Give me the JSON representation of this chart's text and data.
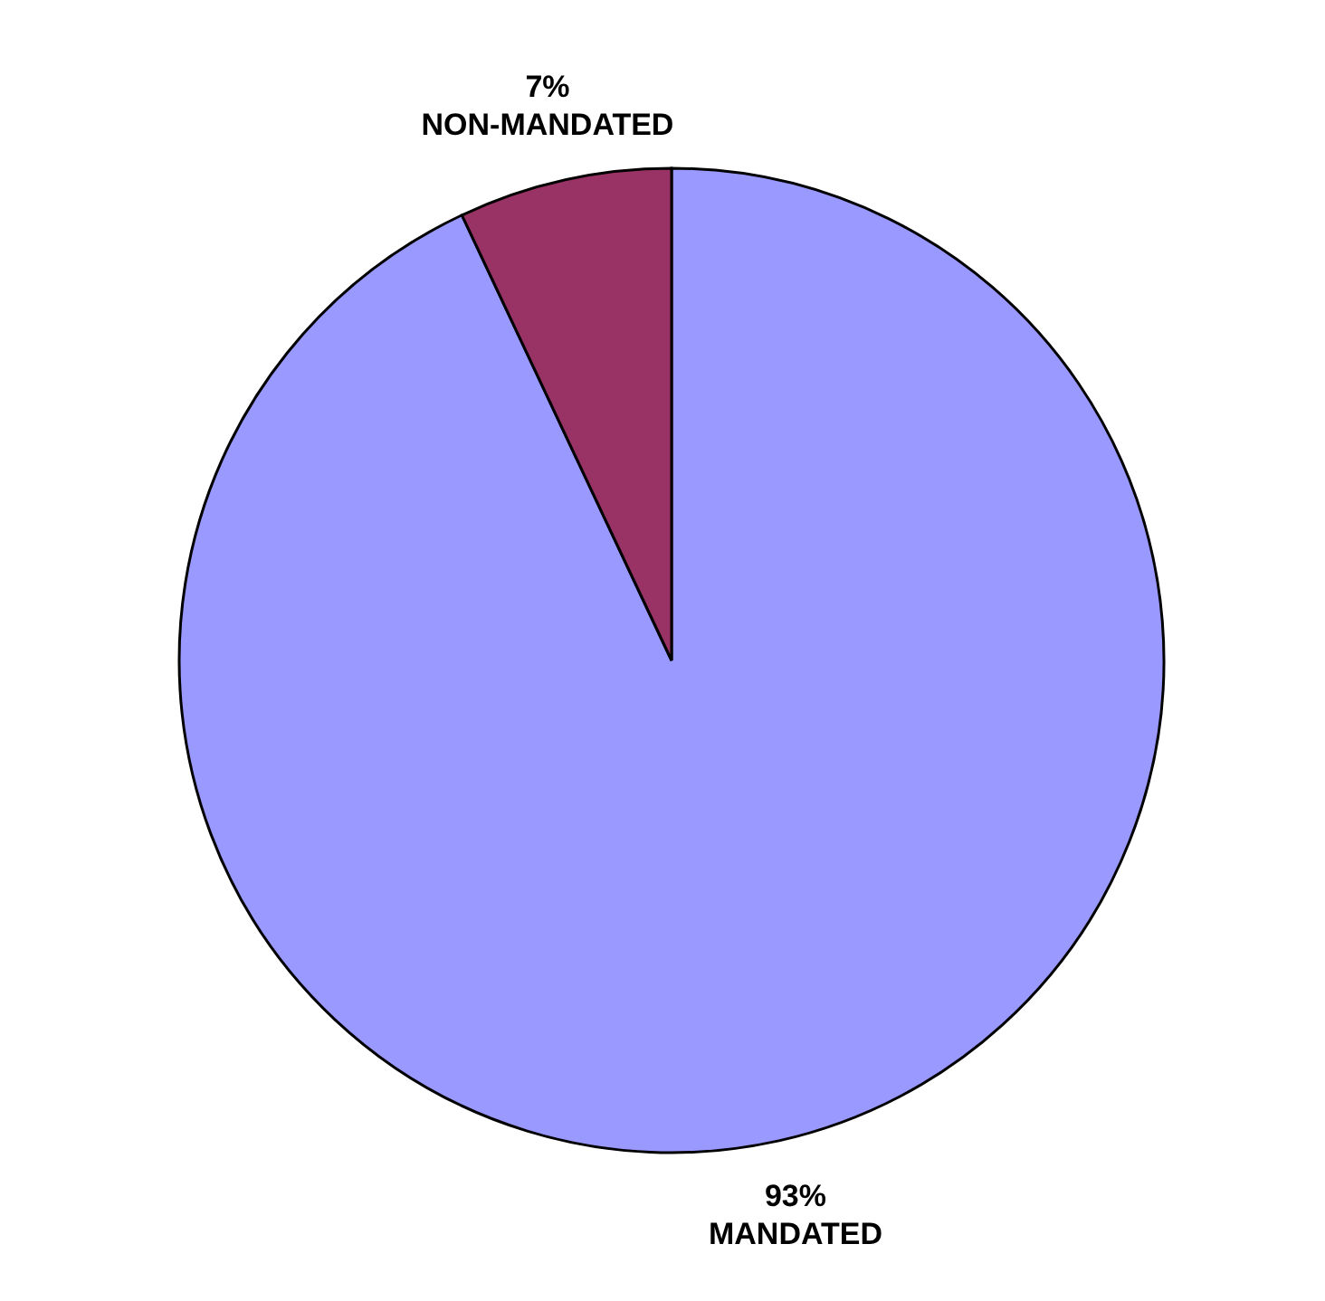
{
  "chart_data": {
    "type": "pie",
    "categories": [
      "MANDATED",
      "NON-MANDATED"
    ],
    "values": [
      93,
      7
    ],
    "colors": [
      "#9999ff",
      "#993366"
    ],
    "value_labels": [
      "93%",
      "7%"
    ]
  }
}
